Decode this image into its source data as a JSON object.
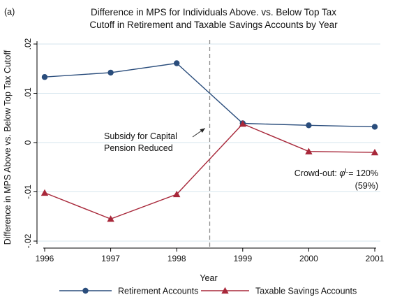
{
  "chart_data": {
    "type": "line",
    "panel_label": "(a)",
    "title_lines": [
      "Difference in MPS for Individuals Above. vs. Below Top Tax",
      "Cutoff in Retirement and Taxable Savings Accounts by Year"
    ],
    "xlabel": "Year",
    "ylabel": "Difference in MPS Above vs. Below Top Tax Cutoff",
    "x": [
      1996,
      1997,
      1998,
      1999,
      2000,
      2001
    ],
    "x_tick_labels": [
      "1996",
      "1997",
      "1998",
      "1999",
      "2000",
      "2001"
    ],
    "xlim": [
      1996,
      2001
    ],
    "ylim": [
      -0.02,
      0.02
    ],
    "y_ticks": [
      -0.02,
      -0.01,
      0,
      0.01,
      0.02
    ],
    "y_tick_labels": [
      "-.02",
      "-.01",
      "0",
      ".01",
      ".02"
    ],
    "grid": "horizontal",
    "legend_position": "bottom",
    "series": [
      {
        "name": "Retirement Accounts",
        "values": [
          0.0133,
          0.0142,
          0.0161,
          0.0039,
          0.0035,
          0.0032
        ],
        "color": "#2a4d7c",
        "marker": "circle"
      },
      {
        "name": "Taxable Savings Accounts",
        "values": [
          -0.0102,
          -0.0155,
          -0.0105,
          0.0038,
          -0.0018,
          -0.002
        ],
        "color": "#a8283a",
        "marker": "triangle"
      }
    ],
    "vline": {
      "x": 1998.5,
      "style": "dashed"
    },
    "annotations": {
      "subsidy_lines": [
        "Subsidy for Capital",
        "Pension Reduced"
      ],
      "subsidy_arrow_target": {
        "x": 1998.43,
        "y": 0.0029
      },
      "crowdout_prefix": "Crowd-out: ",
      "crowdout_phi": "φ",
      "crowdout_sup": "L",
      "crowdout_value": "= 120%",
      "crowdout_sub": "(59%)"
    }
  }
}
